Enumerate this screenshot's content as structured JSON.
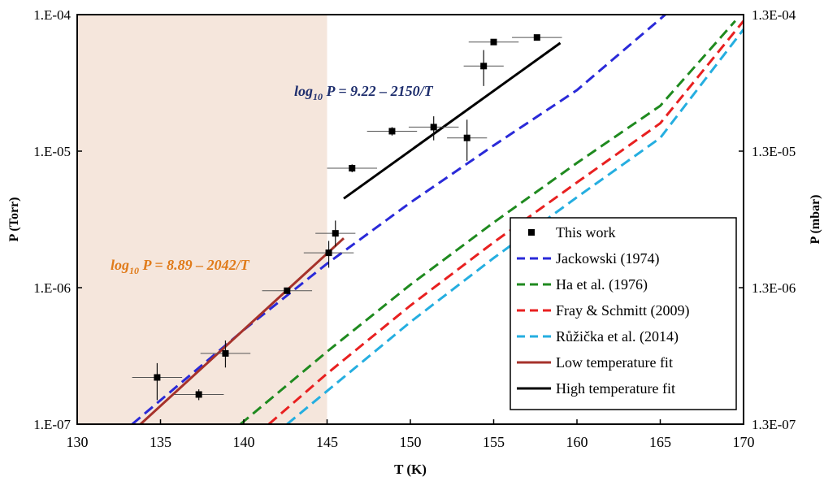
{
  "chart_data": {
    "type": "scatter",
    "xlabel": "T (K)",
    "ylabel": "P (Torr)",
    "y2label": "P (mbar)",
    "xlim": [
      130,
      170
    ],
    "ylim": [
      1e-07,
      0.0001
    ],
    "y_scale": "log",
    "x_ticks": [
      "130",
      "135",
      "140",
      "145",
      "150",
      "155",
      "160",
      "165",
      "170"
    ],
    "y_ticks": [
      "1.E-07",
      "1.E-06",
      "1.E-05",
      "1.E-04"
    ],
    "y2_ticks": [
      "1.3E-07",
      "1.3E-06",
      "1.3E-05",
      "1.3E-04"
    ],
    "grid": false,
    "legend_position": "bottom-right",
    "shaded_region": {
      "x_from": 130,
      "x_to": 145,
      "color": "#f5e6dc"
    },
    "annotations": [
      {
        "text": "log10 P = 9.22 – 2150/T",
        "display_base": "log",
        "display_sub": "10",
        "display_rest": " P = 9.22 – 2150/T",
        "color": "#1f2f6e"
      },
      {
        "text": "log10 P = 8.89 – 2042/T",
        "display_base": "log",
        "display_sub": "10",
        "display_rest": " P = 8.89 – 2042/T",
        "color": "#e07b1a"
      }
    ],
    "data_points": {
      "name": "This work",
      "color": "#000000",
      "points": [
        {
          "x": 134.8,
          "y": 2.2e-07,
          "xerr": 1.5,
          "yerr_lo": 1.5e-07,
          "yerr_hi": 2.8e-07
        },
        {
          "x": 137.3,
          "y": 1.65e-07,
          "xerr": 1.5,
          "yerr_lo": 1.5e-07,
          "yerr_hi": 1.8e-07
        },
        {
          "x": 138.9,
          "y": 3.3e-07,
          "xerr": 1.5,
          "yerr_lo": 2.6e-07,
          "yerr_hi": 4.1e-07
        },
        {
          "x": 142.6,
          "y": 9.5e-07,
          "xerr": 1.5,
          "yerr_lo": 9e-07,
          "yerr_hi": 1e-06
        },
        {
          "x": 145.1,
          "y": 1.8e-06,
          "xerr": 1.5,
          "yerr_lo": 1.4e-06,
          "yerr_hi": 2.2e-06
        },
        {
          "x": 145.5,
          "y": 2.5e-06,
          "xerr": 1.2,
          "yerr_lo": 2e-06,
          "yerr_hi": 3.1e-06
        },
        {
          "x": 146.5,
          "y": 7.5e-06,
          "xerr": 1.5,
          "yerr_lo": 7e-06,
          "yerr_hi": 8e-06
        },
        {
          "x": 148.9,
          "y": 1.4e-05,
          "xerr": 1.5,
          "yerr_lo": 1.3e-05,
          "yerr_hi": 1.5e-05
        },
        {
          "x": 151.4,
          "y": 1.5e-05,
          "xerr": 1.5,
          "yerr_lo": 1.2e-05,
          "yerr_hi": 1.8e-05
        },
        {
          "x": 153.4,
          "y": 1.25e-05,
          "xerr": 1.2,
          "yerr_lo": 8.5e-06,
          "yerr_hi": 1.7e-05
        },
        {
          "x": 154.4,
          "y": 4.2e-05,
          "xerr": 1.2,
          "yerr_lo": 3e-05,
          "yerr_hi": 5.5e-05
        },
        {
          "x": 155.0,
          "y": 6.3e-05,
          "xerr": 1.5,
          "yerr_lo": 6e-05,
          "yerr_hi": 6.6e-05
        },
        {
          "x": 157.6,
          "y": 6.8e-05,
          "xerr": 1.5,
          "yerr_lo": 6.5e-05,
          "yerr_hi": 7.1e-05
        }
      ]
    },
    "series": [
      {
        "name": "Jackowski (1974)",
        "color": "#2a2ad8",
        "style": "dashed",
        "x": [
          133.3,
          136,
          140,
          145,
          150,
          155,
          160,
          165.3
        ],
        "y": [
          1e-07,
          1.9e-07,
          4.9e-07,
          1.5e-06,
          4.2e-06,
          1.1e-05,
          2.8e-05,
          0.0001
        ]
      },
      {
        "name": "Ha et al. (1976)",
        "color": "#1f8a1f",
        "style": "dashed",
        "x": [
          139.8,
          145,
          150,
          155,
          160,
          165,
          169.5
        ],
        "y": [
          1e-07,
          3.4e-07,
          1.05e-06,
          3e-06,
          8.2e-06,
          2.15e-05,
          9e-05
        ]
      },
      {
        "name": "Fray & Schmitt (2009)",
        "color": "#e82020",
        "style": "dashed",
        "x": [
          141.5,
          145,
          150,
          155,
          160,
          165,
          170
        ],
        "y": [
          1e-07,
          2.35e-07,
          7.4e-07,
          2.15e-06,
          5.9e-06,
          1.6e-05,
          9e-05
        ]
      },
      {
        "name": "Růžička et al. (2014)",
        "color": "#25aee0",
        "style": "dashed",
        "x": [
          142.6,
          145,
          150,
          155,
          160,
          165,
          170
        ],
        "y": [
          1e-07,
          1.75e-07,
          5.6e-07,
          1.65e-06,
          4.6e-06,
          1.25e-05,
          7.8e-05
        ]
      },
      {
        "name": "Low temperature fit",
        "color": "#a6322b",
        "style": "solid",
        "x": [
          133.8,
          146
        ],
        "y": [
          1e-07,
          2.3e-06
        ]
      },
      {
        "name": "High temperature fit",
        "color": "#000000",
        "style": "solid",
        "x": [
          146,
          159
        ],
        "y": [
          4.5e-06,
          6.2e-05
        ]
      }
    ],
    "legend": [
      "This work",
      "Jackowski (1974)",
      "Ha et al. (1976)",
      "Fray & Schmitt (2009)",
      "Růžička et al. (2014)",
      "Low temperature fit",
      "High temperature fit"
    ]
  }
}
